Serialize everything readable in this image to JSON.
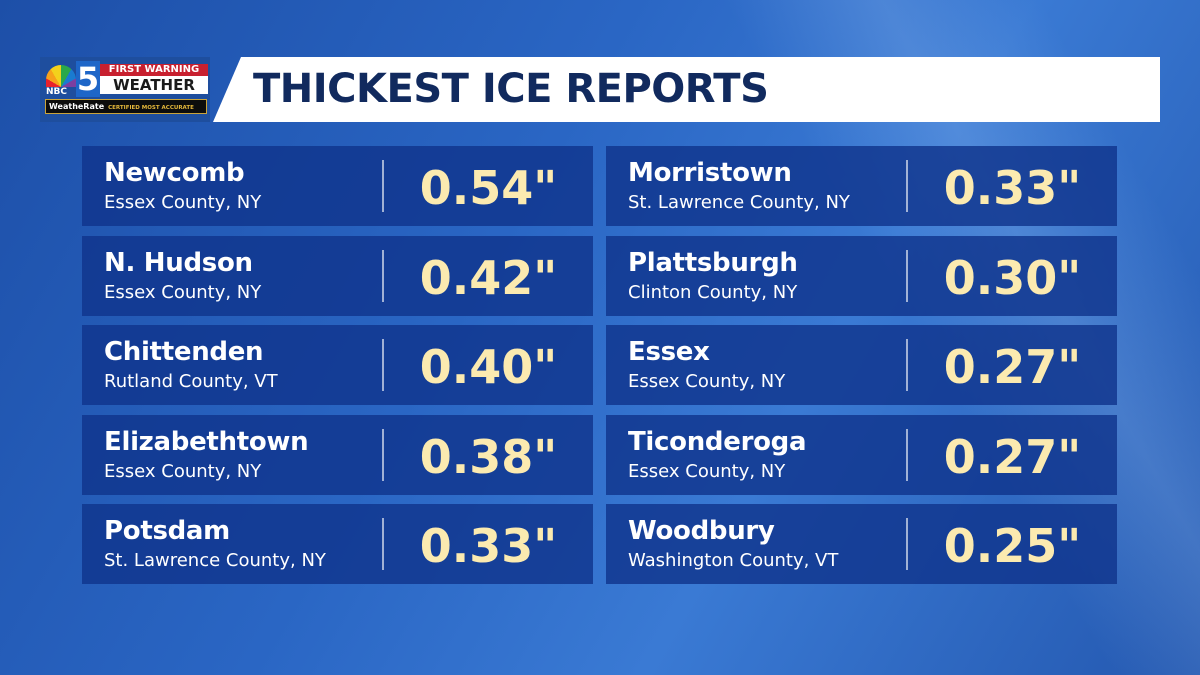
{
  "logo": {
    "network": "NBC",
    "channel": "5",
    "line1": "FIRST WARNING",
    "line2": "WEATHER",
    "partner": "WeatheRate",
    "partner_tag": "CERTIFIED MOST ACCURATE"
  },
  "title": "THICKEST ICE REPORTS",
  "colors": {
    "value": "#fbeab0",
    "panel": "#10348c",
    "title": "#112a5e"
  },
  "reports": [
    {
      "town": "Newcomb",
      "county": "Essex County, NY",
      "ice": "0.54\""
    },
    {
      "town": "N. Hudson",
      "county": "Essex County, NY",
      "ice": "0.42\""
    },
    {
      "town": "Chittenden",
      "county": "Rutland County, VT",
      "ice": "0.40\""
    },
    {
      "town": "Elizabethtown",
      "county": "Essex County, NY",
      "ice": "0.38\""
    },
    {
      "town": "Potsdam",
      "county": "St. Lawrence County, NY",
      "ice": "0.33\""
    },
    {
      "town": "Morristown",
      "county": "St. Lawrence County, NY",
      "ice": "0.33\""
    },
    {
      "town": "Plattsburgh",
      "county": "Clinton County, NY",
      "ice": "0.30\""
    },
    {
      "town": "Essex",
      "county": "Essex County, NY",
      "ice": "0.27\""
    },
    {
      "town": "Ticonderoga",
      "county": "Essex County, NY",
      "ice": "0.27\""
    },
    {
      "town": "Woodbury",
      "county": "Washington County, VT",
      "ice": "0.25\""
    }
  ]
}
